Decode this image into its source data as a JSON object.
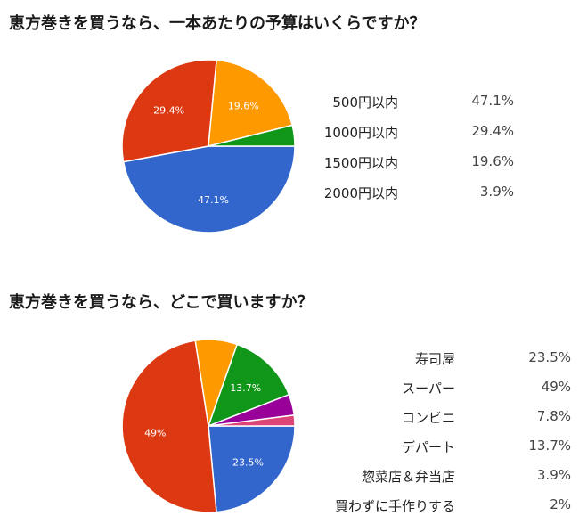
{
  "chart_data": [
    {
      "type": "pie",
      "title": "恵方巻きを買うなら、一本あたりの予算はいくらですか？",
      "categories": [
        "500円以内",
        "1000円以内",
        "1500円以内",
        "2000円以内"
      ],
      "values": [
        47.1,
        29.4,
        19.6,
        3.9
      ],
      "value_labels": [
        "47.1%",
        "29.4%",
        "19.6%",
        "3.9%"
      ],
      "slice_labels": [
        "47.1%",
        "29.4%",
        "19.6%",
        ""
      ],
      "colors": [
        "#3366cc",
        "#dc3912",
        "#ff9900",
        "#109618"
      ],
      "legend": "right"
    },
    {
      "type": "pie",
      "title": "恵方巻きを買うなら、どこで買いますか？",
      "categories": [
        "寿司屋",
        "スーパー",
        "コンビニ",
        "デパート",
        "惣菜店＆弁当店",
        "買わずに手作りする"
      ],
      "values": [
        23.5,
        49,
        7.8,
        13.7,
        3.9,
        2
      ],
      "value_labels": [
        "23.5%",
        "49%",
        "7.8%",
        "13.7%",
        "3.9%",
        "2%"
      ],
      "slice_labels": [
        "23.5%",
        "49%",
        "",
        "13.7%",
        "",
        ""
      ],
      "colors": [
        "#3366cc",
        "#dc3912",
        "#ff9900",
        "#109618",
        "#990099",
        "#dd4477"
      ],
      "legend": "right"
    }
  ]
}
